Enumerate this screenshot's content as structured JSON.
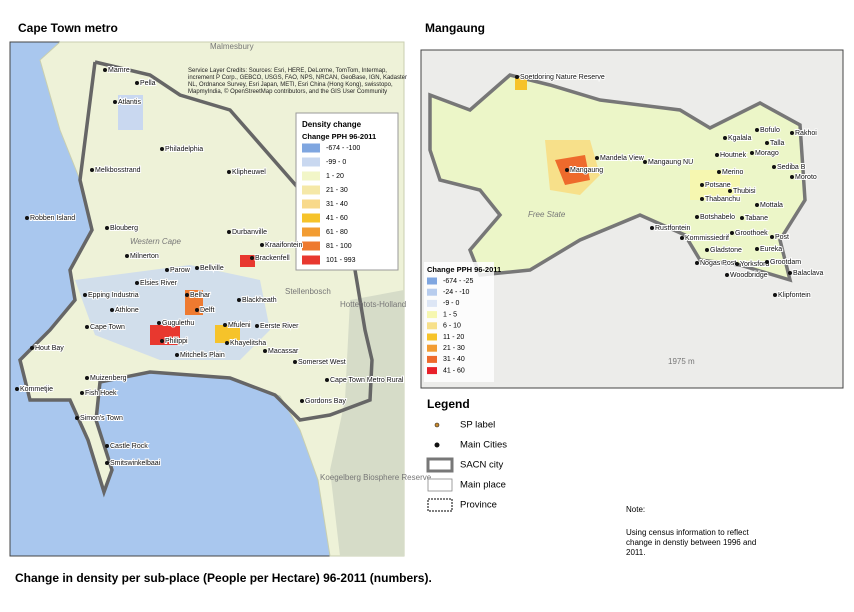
{
  "left_map": {
    "title": "Cape Town metro",
    "credits": "Service Layer Credits: Sources: Esri, HERE, DeLorme, TomTom, Intermap, increment P Corp., GEBCO, USGS, FAO, NPS, NRCAN, GeoBase, IGN, Kadaster NL, Ordnance Survey, Esri Japan, METI, Esri China (Hong Kong), swisstopo, MapmyIndia, © OpenStreetMap contributors, and the GIS User Community",
    "legend": {
      "title": "Density change",
      "subtitle": "Change PPH 96-2011",
      "items": [
        {
          "label": "-674 - -100",
          "color": "#7fa6e0"
        },
        {
          "label": "-99 - 0",
          "color": "#c9d8f0"
        },
        {
          "label": "1 - 20",
          "color": "#f2f6c8"
        },
        {
          "label": "21 - 30",
          "color": "#f5e8a8"
        },
        {
          "label": "31 - 40",
          "color": "#f8d98a"
        },
        {
          "label": "41 - 60",
          "color": "#f6c32a"
        },
        {
          "label": "61 - 80",
          "color": "#f29c32"
        },
        {
          "label": "81 - 100",
          "color": "#ee7a30"
        },
        {
          "label": "101 - 993",
          "color": "#e8382f"
        }
      ]
    },
    "places": [
      "Mamre",
      "Pella",
      "Atlantis",
      "Philadelphia",
      "Melkbosstrand",
      "Klipheuwel",
      "Robben Island",
      "Blouberg",
      "Durbanville",
      "Kraaifontein",
      "Milnerton",
      "Brackenfell",
      "Parow",
      "Bellville",
      "Elsies River",
      "Epping Industria",
      "Belhar",
      "Blackheath",
      "Athlone",
      "Delft",
      "Cape Town",
      "Gugulethu",
      "Mfuleni",
      "Eerste River",
      "Philippi",
      "Khayelitsha",
      "Hout Bay",
      "Mitchells Plain",
      "Macassar",
      "Somerset West",
      "Muizenberg",
      "Cape Town Metro Rural",
      "Kommetjie",
      "Fish Hoek",
      "Gordons Bay",
      "Simon's Town",
      "Castle Rock",
      "Smitswinkelbaai"
    ],
    "background_labels": [
      "Malmesbury",
      "Western Cape",
      "Stellenbosch",
      "Hottentots-Holland",
      "Koegelberg Biosphere Reserve"
    ]
  },
  "right_map": {
    "title": "Mangaung",
    "legend": {
      "title": "Change PPH 96-2011",
      "items": [
        {
          "label": "-674 - -25",
          "color": "#7fa6e0"
        },
        {
          "label": "-24 - -10",
          "color": "#b8cdee"
        },
        {
          "label": "-9 - 0",
          "color": "#dde6f5"
        },
        {
          "label": "1 - 5",
          "color": "#f6f7b0"
        },
        {
          "label": "6 - 10",
          "color": "#f7e08a"
        },
        {
          "label": "11 - 20",
          "color": "#f6c32a"
        },
        {
          "label": "21 - 30",
          "color": "#f29c32"
        },
        {
          "label": "31 - 40",
          "color": "#ee6a2c"
        },
        {
          "label": "41 - 60",
          "color": "#e8202a"
        }
      ]
    },
    "places": [
      "Soetdoring Nature Reserve",
      "Kgalala",
      "Bofulo",
      "Talla",
      "Houtnek",
      "Morago",
      "Rakhoi",
      "Sediba B",
      "Moroto",
      "Merino",
      "Mandela View",
      "Mangaung NU",
      "Mangaung",
      "Potsane",
      "Thubisi",
      "Thabanchu",
      "Mottala",
      "Botshabelo",
      "Tabane",
      "Rustfontein",
      "Kommissiedrif",
      "Groothoek",
      "Post",
      "Gladstone",
      "Eureka",
      "Nogas Post",
      "Yorksford",
      "Grootdam",
      "Woodbridge",
      "Balaclava",
      "Klipfontein"
    ],
    "background_labels": [
      "Free State",
      "1975 m"
    ]
  },
  "legend": {
    "title": "Legend",
    "items": [
      "SP label",
      "Main Cities",
      "SACN city",
      "Main place",
      "Province"
    ]
  },
  "note": {
    "title": "Note:",
    "text": "Using census information to reflect change in denstiy between 1996 and 2011."
  },
  "caption": "Change in density per sub-place (People per Hectare) 96-2011 (numbers)."
}
